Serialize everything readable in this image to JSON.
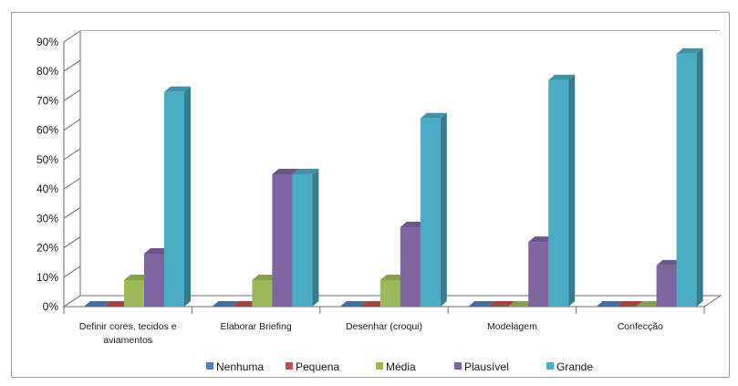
{
  "chart_data": {
    "type": "bar",
    "categories": [
      [
        "Definir cores, tecidos e",
        "aviamentos"
      ],
      [
        "Elaborar Briefing"
      ],
      [
        "Desenhar (croqui)"
      ],
      [
        "Modelagem"
      ],
      [
        "Confecção"
      ]
    ],
    "series": [
      {
        "name": "Nenhuma",
        "color": "#4f81bd",
        "values": [
          0,
          0,
          0,
          0,
          0
        ]
      },
      {
        "name": "Pequena",
        "color": "#c0504d",
        "values": [
          0,
          0,
          0,
          0,
          0
        ]
      },
      {
        "name": "Média",
        "color": "#9bbb59",
        "values": [
          9,
          9,
          9,
          0,
          0
        ]
      },
      {
        "name": "Plausível",
        "color": "#8064a2",
        "values": [
          18,
          45,
          27,
          22,
          14
        ]
      },
      {
        "name": "Grande",
        "color": "#4bacc6",
        "values": [
          73,
          45,
          64,
          77,
          86
        ]
      }
    ],
    "ylim": [
      0,
      90
    ],
    "yticks": [
      0,
      10,
      20,
      30,
      40,
      50,
      60,
      70,
      80,
      90
    ],
    "ytick_labels": [
      "0%",
      "10%",
      "20%",
      "30%",
      "40%",
      "50%",
      "60%",
      "70%",
      "80%",
      "90%"
    ],
    "grid": true,
    "legend": "bottom"
  }
}
